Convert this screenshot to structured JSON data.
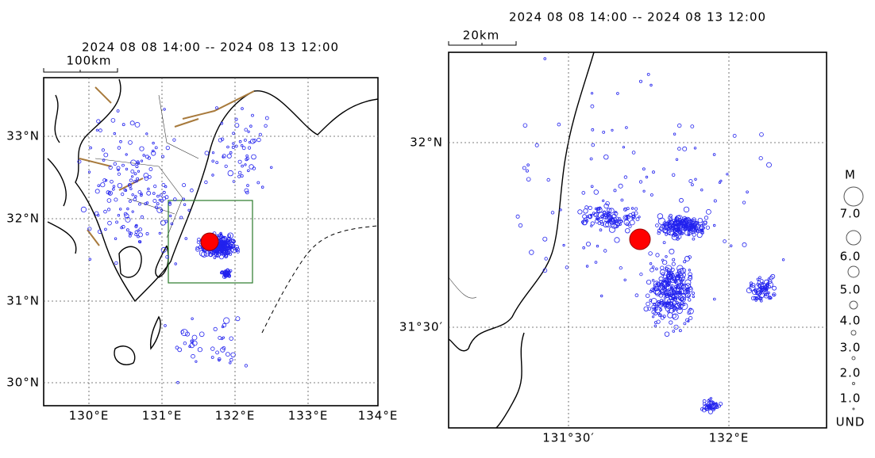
{
  "left_map": {
    "period": "2024 08 08 14:00 -- 2024 08 13 12:00",
    "scale": "100km",
    "lat_labels": [
      "33°N",
      "32°N",
      "31°N",
      "30°N"
    ],
    "lon_labels": [
      "130°E",
      "131°E",
      "132°E",
      "133°E",
      "134°E"
    ]
  },
  "right_map": {
    "period": "2024 08 08 14:00 -- 2024 08 13 12:00",
    "scale": "20km",
    "lat_labels": [
      "32°N",
      "31°30′"
    ],
    "lon_labels": [
      "131°30′",
      "132°E"
    ]
  },
  "legend": {
    "title": "M",
    "labels": [
      "7.0",
      "6.0",
      "5.0",
      "4.0",
      "3.0",
      "2.0",
      "1.0",
      "UND"
    ]
  }
}
